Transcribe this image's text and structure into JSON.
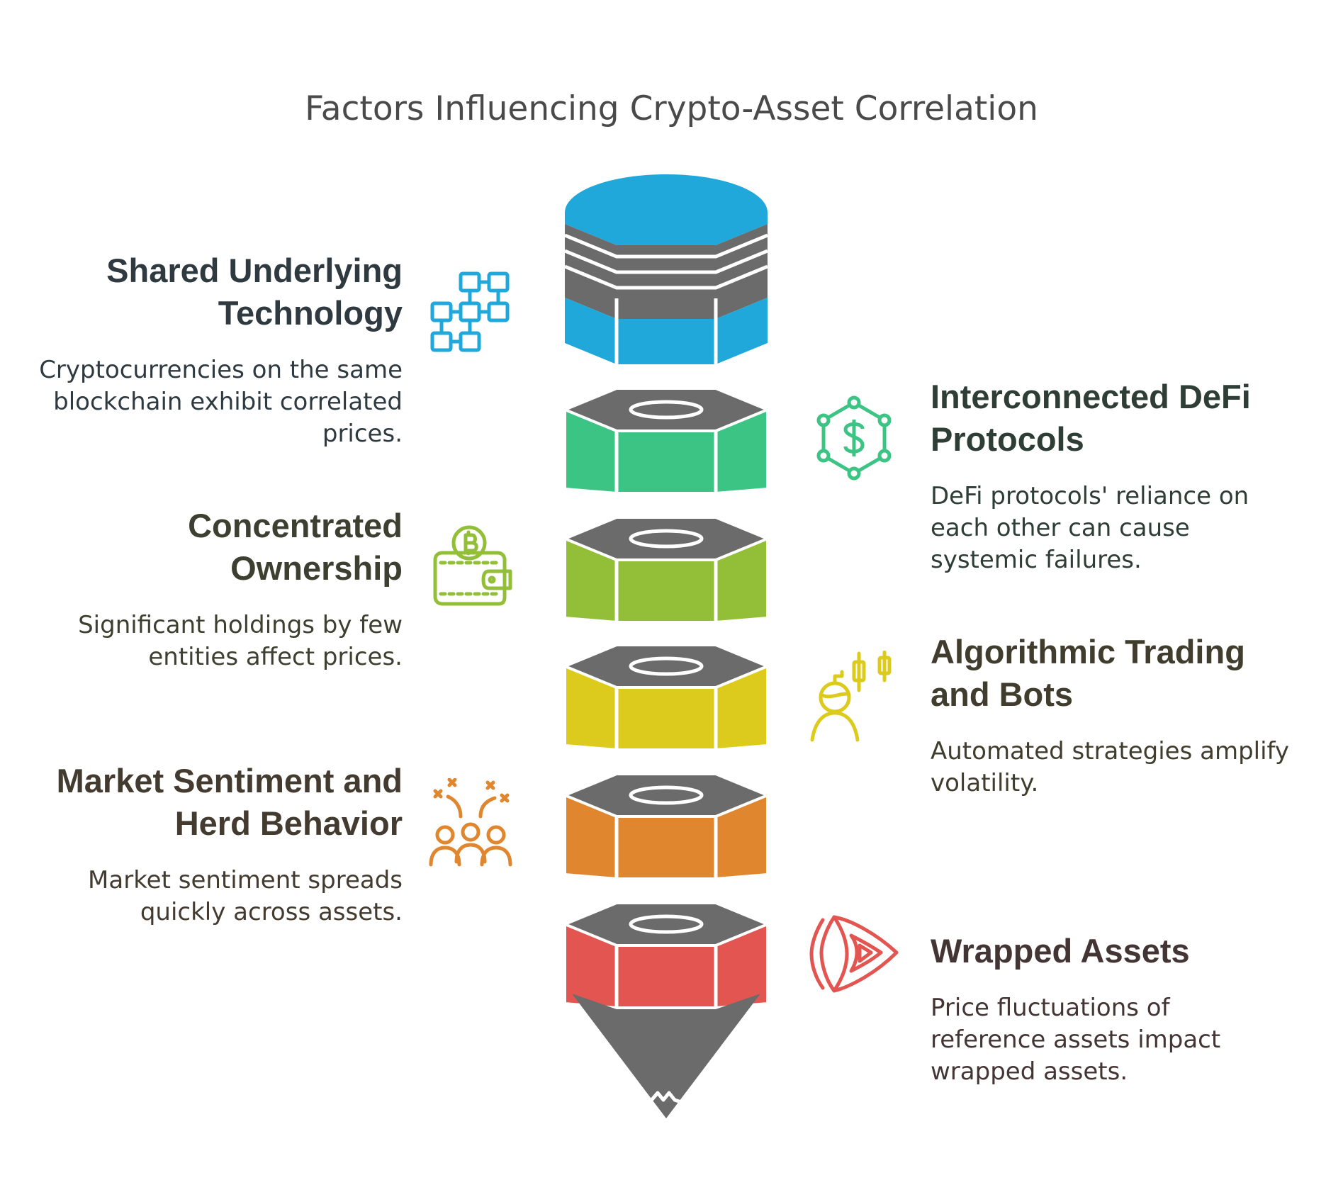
{
  "title": "Factors Influencing Crypto-Asset Correlation",
  "factors": [
    {
      "heading": "Shared Underlying Technology",
      "heading_lines": [
        "Shared Underlying",
        "Technology"
      ],
      "description_lines": [
        "Cryptocurrencies on the same",
        "blockchain exhibit correlated",
        "prices."
      ],
      "color": "#1fa8d9",
      "text_color": "#2e3a40",
      "side": "left",
      "icon": "blockchain-blocks-icon"
    },
    {
      "heading": "Interconnected DeFi Protocols",
      "heading_lines": [
        "Interconnected DeFi",
        "Protocols"
      ],
      "description_lines": [
        "DeFi protocols' reliance on",
        "each other can cause",
        "systemic failures."
      ],
      "color": "#3cc484",
      "text_color": "#2e3d36",
      "side": "right",
      "icon": "defi-network-dollar-icon"
    },
    {
      "heading": "Concentrated Ownership",
      "heading_lines": [
        "Concentrated",
        "Ownership"
      ],
      "description_lines": [
        "Significant holdings by few",
        "entities affect prices."
      ],
      "color": "#93bf38",
      "text_color": "#3d4030",
      "side": "left",
      "icon": "bitcoin-wallet-icon"
    },
    {
      "heading": "Algorithmic Trading and Bots",
      "heading_lines": [
        "Algorithmic Trading",
        "and Bots"
      ],
      "description_lines": [
        "Automated strategies amplify",
        "volatility."
      ],
      "color": "#dccb1c",
      "text_color": "#403c2e",
      "side": "right",
      "icon": "trader-candlestick-icon"
    },
    {
      "heading": "Market Sentiment and Herd Behavior",
      "heading_lines": [
        "Market Sentiment and",
        "Herd Behavior"
      ],
      "description_lines": [
        "Market sentiment spreads",
        "quickly across assets."
      ],
      "color": "#e0862e",
      "text_color": "#433a30",
      "side": "left",
      "icon": "crowd-celebration-icon"
    },
    {
      "heading": "Wrapped Assets",
      "heading_lines": [
        "Wrapped Assets"
      ],
      "description_lines": [
        "Price fluctuations of",
        "reference assets impact",
        "wrapped assets."
      ],
      "color": "#e25550",
      "text_color": "#443535",
      "side": "right",
      "icon": "wrapped-play-icon"
    }
  ],
  "colors": {
    "cap": "#6b6b6b",
    "outline": "#ffffff",
    "title": "#4a4a4a"
  }
}
